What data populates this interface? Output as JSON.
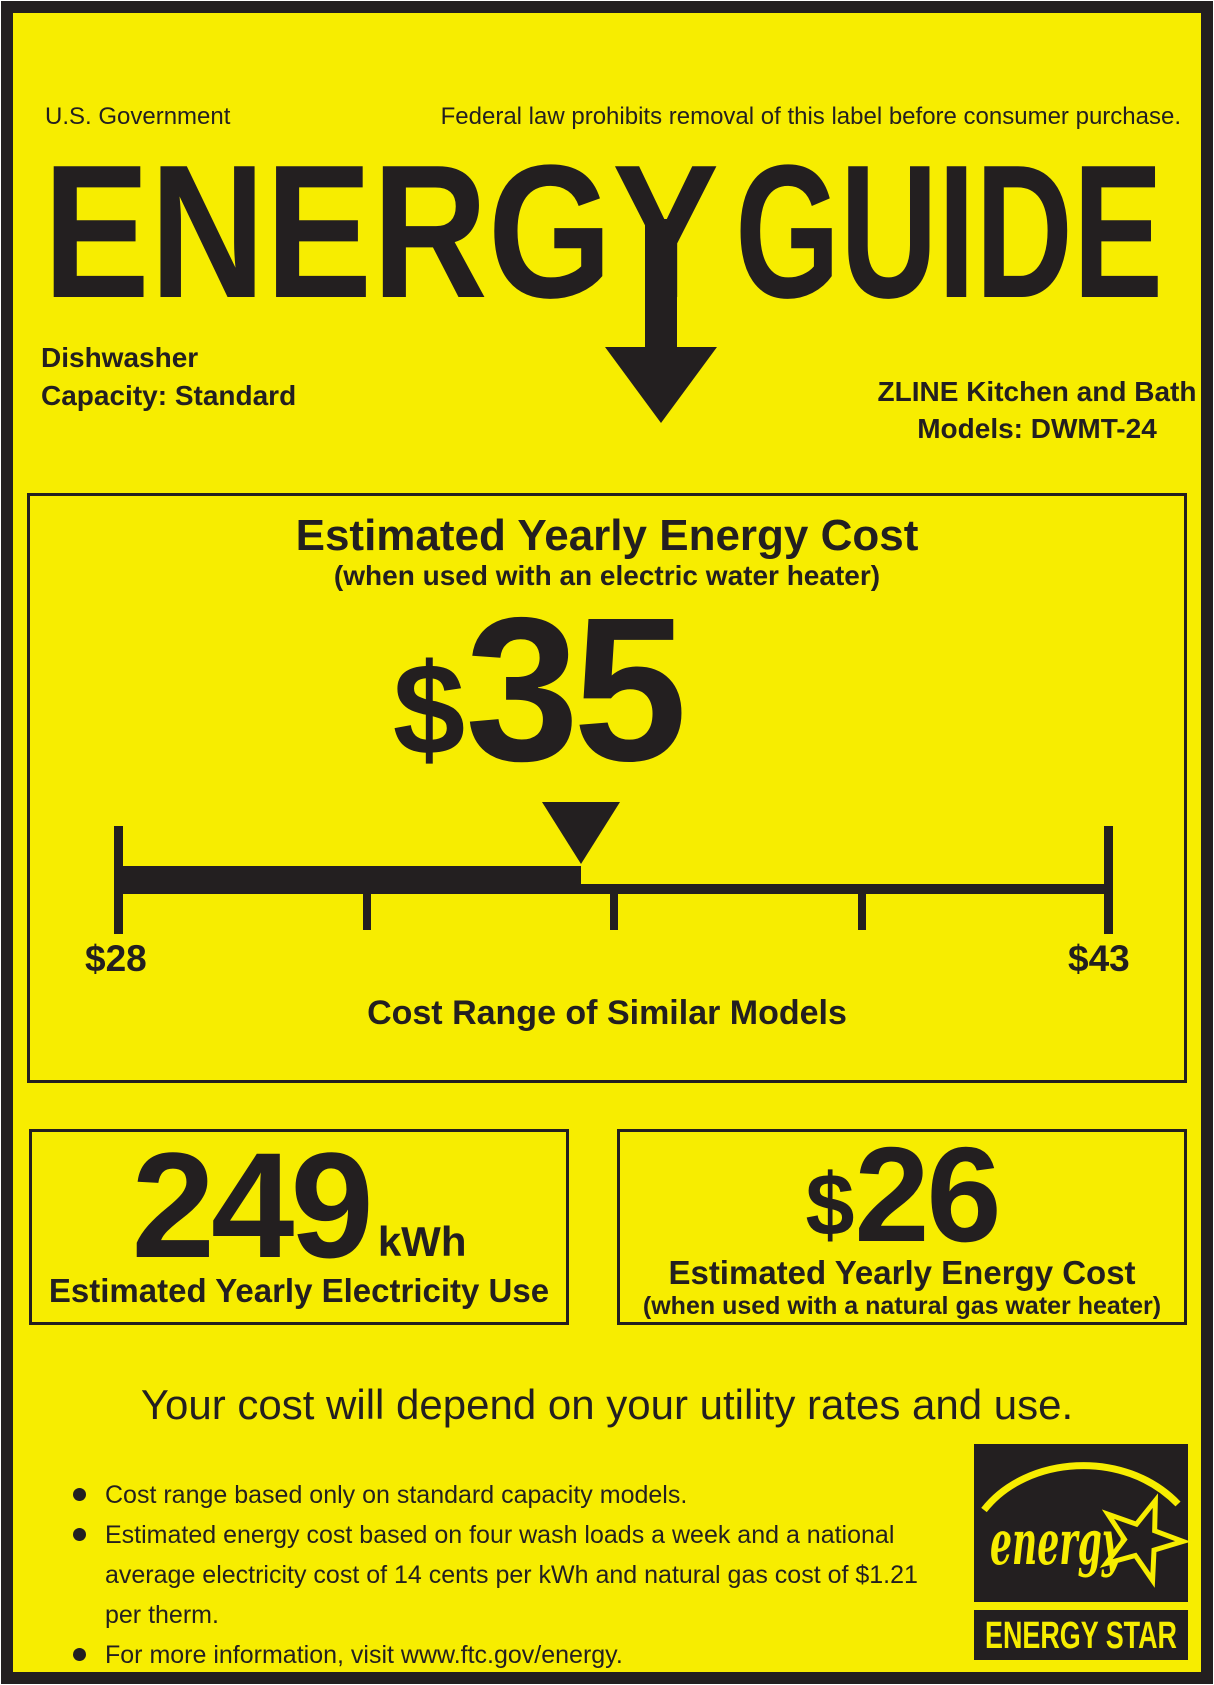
{
  "colors": {
    "background_yellow": "#f7ed00",
    "ink_black": "#231f20"
  },
  "header": {
    "government": "U.S. Government",
    "federal_notice": "Federal law prohibits removal of this label before consumer purchase.",
    "logo_part1": "ENERGY",
    "logo_part2": "GUIDE"
  },
  "product": {
    "type": "Dishwasher",
    "capacity": "Capacity: Standard",
    "manufacturer": "ZLINE Kitchen and Bath",
    "models": "Models: DWMT-24"
  },
  "main_box": {
    "title": "Estimated Yearly Energy Cost",
    "subtitle": "(when used with an electric water heater)",
    "cost_currency": "$",
    "cost_value": "35",
    "range_min_label": "$28",
    "range_max_label": "$43",
    "range_caption": "Cost Range of Similar Models",
    "cost_range": {
      "min": 28,
      "max": 43,
      "value": 35,
      "unit": "dollars per year"
    }
  },
  "electricity_box": {
    "value": "249",
    "unit": "kWh",
    "caption": "Estimated Yearly Electricity Use"
  },
  "gas_box": {
    "currency": "$",
    "value": "26",
    "caption": "Estimated Yearly Energy Cost",
    "subcaption": "(when used with a natural gas water heater)"
  },
  "footer": {
    "utility_note": "Your cost will depend on your utility rates and use.",
    "bullets": [
      "Cost range based only on standard capacity models.",
      "Estimated energy cost based on four wash loads a week and a national average electricity cost of 14 cents per kWh and natural gas cost of $1.21 per therm.",
      "For more information, visit www.ftc.gov/energy."
    ]
  },
  "energy_star": {
    "script_text": "energy",
    "label": "ENERGY STAR"
  }
}
